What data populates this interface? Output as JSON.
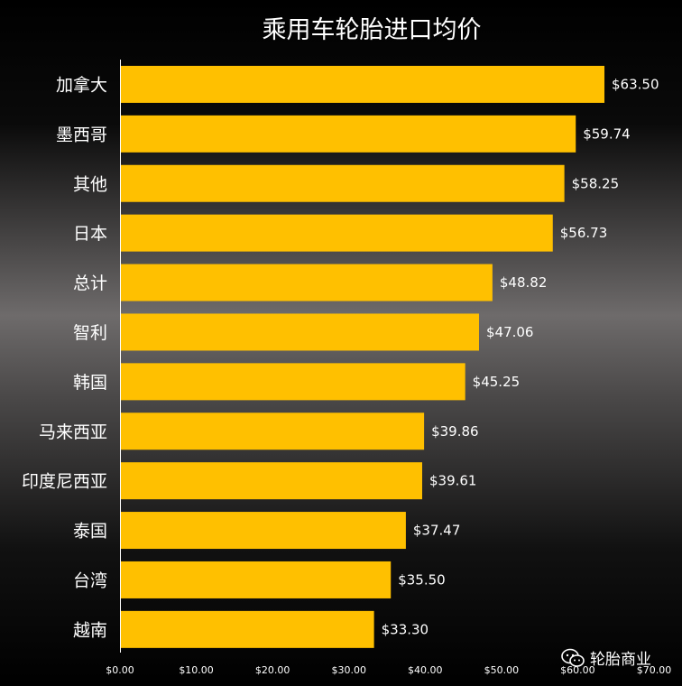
{
  "chart_data": {
    "type": "bar",
    "orientation": "horizontal",
    "title": "乘用车轮胎进口均价",
    "categories": [
      "加拿大",
      "墨西哥",
      "其他",
      "日本",
      "总计",
      "智利",
      "韩国",
      "马来西亚",
      "印度尼西亚",
      "泰国",
      "台湾",
      "越南"
    ],
    "values": [
      63.5,
      59.74,
      58.25,
      56.73,
      48.82,
      47.06,
      45.25,
      39.86,
      39.61,
      37.47,
      35.5,
      33.3
    ],
    "value_labels": [
      "$63.50",
      "$59.74",
      "$58.25",
      "$56.73",
      "$48.82",
      "$47.06",
      "$45.25",
      "$39.86",
      "$39.61",
      "$37.47",
      "$35.50",
      "$33.30"
    ],
    "xlim": [
      0,
      70
    ],
    "ticks": [
      0,
      10,
      20,
      30,
      40,
      50,
      60,
      70
    ],
    "tick_labels": [
      "$0.00",
      "$10.00",
      "$20.00",
      "$30.00",
      "$40.00",
      "$50.00",
      "$60.00",
      "$70.00"
    ],
    "bar_color": "#FFC000",
    "grid": false,
    "xlabel": "",
    "ylabel": ""
  },
  "watermark": {
    "icon": "wechat-icon",
    "text": "轮胎商业"
  }
}
